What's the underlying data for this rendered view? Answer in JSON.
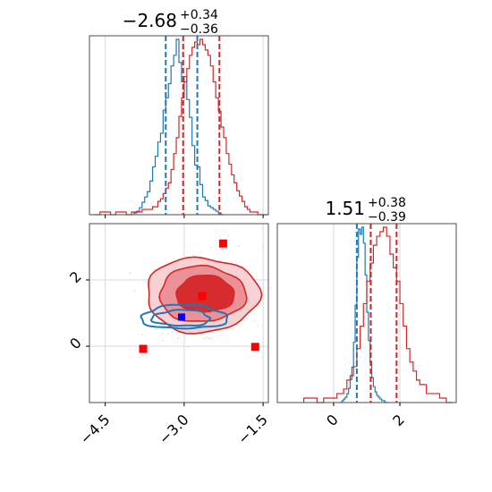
{
  "chart_data": [
    {
      "panel": "top-left",
      "type": "histogram",
      "title": {
        "value": "−2.68",
        "plus": "+0.34",
        "minus": "−0.36"
      },
      "xlim": [
        -4.8,
        -1.4
      ],
      "xticks": [
        "−4.5",
        "−3.0",
        "−1.5"
      ],
      "grid_x": [
        -4.5,
        -3.0,
        -1.5
      ],
      "series": [
        {
          "color": "#1f77b4",
          "bins": [
            -3.95,
            -3.9,
            -3.85,
            -3.8,
            -3.75,
            -3.7,
            -3.65,
            -3.6,
            -3.55,
            -3.5,
            -3.45,
            -3.4,
            -3.35,
            -3.3,
            -3.25,
            -3.2,
            -3.15,
            -3.1,
            -3.05,
            -3.0,
            -2.95,
            -2.9,
            -2.85,
            -2.8,
            -2.75,
            -2.7,
            -2.65,
            -2.6,
            -2.55,
            -2.5,
            -2.45,
            -2.4,
            -2.35,
            -2.3
          ],
          "counts": [
            0.01,
            0.02,
            0.04,
            0.07,
            0.1,
            0.13,
            0.19,
            0.27,
            0.33,
            0.41,
            0.46,
            0.59,
            0.66,
            0.74,
            0.84,
            0.9,
            0.99,
            0.86,
            0.75,
            0.78,
            0.65,
            0.55,
            0.39,
            0.28,
            0.27,
            0.17,
            0.1,
            0.08,
            0.05,
            0.04,
            0.03,
            0.02,
            0.01,
            0.0
          ]
        },
        {
          "color": "#d62728",
          "bins": [
            -4.7,
            -4.6,
            -4.5,
            -4.4,
            -4.3,
            -4.2,
            -4.1,
            -4.0,
            -3.9,
            -3.8,
            -3.7,
            -3.6,
            -3.5,
            -3.45,
            -3.4,
            -3.35,
            -3.3,
            -3.25,
            -3.2,
            -3.15,
            -3.1,
            -3.05,
            -3.0,
            -2.95,
            -2.9,
            -2.85,
            -2.8,
            -2.75,
            -2.7,
            -2.65,
            -2.6,
            -2.55,
            -2.5,
            -2.45,
            -2.4,
            -2.35,
            -2.3,
            -2.25,
            -2.2,
            -2.15,
            -2.1,
            -2.05,
            -2.0,
            -1.95,
            -1.9,
            -1.85,
            -1.8,
            -1.75,
            -1.7,
            -1.6,
            -1.5
          ],
          "counts": [
            0.0,
            0.01,
            0.01,
            0.0,
            0.01,
            0.01,
            0.0,
            0.01,
            0.01,
            0.02,
            0.02,
            0.03,
            0.05,
            0.06,
            0.08,
            0.1,
            0.12,
            0.17,
            0.23,
            0.29,
            0.37,
            0.44,
            0.5,
            0.55,
            0.6,
            0.63,
            0.65,
            0.64,
            0.66,
            0.64,
            0.62,
            0.6,
            0.56,
            0.5,
            0.44,
            0.39,
            0.33,
            0.29,
            0.23,
            0.19,
            0.15,
            0.12,
            0.09,
            0.07,
            0.05,
            0.03,
            0.02,
            0.01,
            0.01,
            0.0,
            0.0
          ]
        }
      ],
      "quantile_lines": [
        {
          "color": "#1f77b4",
          "x": [
            -3.35,
            -2.75
          ]
        },
        {
          "color": "#d62728",
          "x": [
            -3.02,
            -2.33
          ]
        }
      ]
    },
    {
      "panel": "bottom-left",
      "type": "scatter-contour",
      "xlim": [
        -4.8,
        -1.4
      ],
      "ylim": [
        -1.7,
        3.7
      ],
      "xticks": [
        "−4.5",
        "−3.0",
        "−1.5"
      ],
      "yticks": [
        "0",
        "2"
      ],
      "grid_x": [
        -4.5,
        -3.0,
        -1.5
      ],
      "grid_y": [
        0,
        2
      ],
      "contours_red": [
        {
          "cx": -2.66,
          "cy": 1.55,
          "rx": 1.07,
          "ry": 1.13
        },
        {
          "cx": -2.66,
          "cy": 1.57,
          "rx": 0.82,
          "ry": 0.84
        },
        {
          "cx": -2.6,
          "cy": 1.58,
          "rx": 0.55,
          "ry": 0.55
        }
      ],
      "contours_blue": [
        {
          "cx": -3.0,
          "cy": 0.88,
          "rx": 0.82,
          "ry": 0.36
        },
        {
          "cx": -3.05,
          "cy": 0.85,
          "rx": 0.55,
          "ry": 0.24
        }
      ],
      "markers": [
        {
          "x": -3.05,
          "y": 0.88,
          "color": "#0000ff"
        },
        {
          "x": -2.66,
          "y": 1.51,
          "color": "#ff0000"
        },
        {
          "x": -2.26,
          "y": 3.1,
          "color": "#ff0000"
        },
        {
          "x": -3.78,
          "y": -0.08,
          "color": "#ff0000"
        },
        {
          "x": -1.65,
          "y": -0.02,
          "color": "#ff0000"
        }
      ]
    },
    {
      "panel": "bottom-right",
      "type": "histogram",
      "title": {
        "value": "1.51",
        "plus": "+0.38",
        "minus": "−0.39"
      },
      "xlim": [
        -1.7,
        3.7
      ],
      "xticks": [
        "0",
        "2"
      ],
      "grid_x": [
        0,
        2
      ],
      "series": [
        {
          "color": "#1f77b4",
          "bins": [
            0.2,
            0.25,
            0.3,
            0.35,
            0.4,
            0.45,
            0.5,
            0.55,
            0.6,
            0.65,
            0.7,
            0.75,
            0.8,
            0.85,
            0.9,
            0.95,
            1.0,
            1.05,
            1.1,
            1.15,
            1.2,
            1.25,
            1.3,
            1.35,
            1.4,
            1.45,
            1.5,
            1.55,
            1.6
          ],
          "counts": [
            0.0,
            0.01,
            0.02,
            0.03,
            0.05,
            0.08,
            0.13,
            0.2,
            0.34,
            0.55,
            0.82,
            0.98,
            0.95,
            0.99,
            0.9,
            0.72,
            0.51,
            0.35,
            0.23,
            0.14,
            0.09,
            0.06,
            0.04,
            0.03,
            0.02,
            0.01,
            0.01,
            0.0,
            0.0
          ]
        },
        {
          "color": "#d62728",
          "bins": [
            -0.9,
            -0.7,
            -0.5,
            -0.3,
            -0.1,
            0.1,
            0.3,
            0.4,
            0.5,
            0.6,
            0.7,
            0.8,
            0.9,
            1.0,
            1.1,
            1.2,
            1.3,
            1.4,
            1.5,
            1.6,
            1.7,
            1.8,
            1.9,
            2.0,
            2.1,
            2.2,
            2.3,
            2.4,
            2.5,
            2.6,
            2.8,
            3.0,
            3.2,
            3.4
          ],
          "counts": [
            0.01,
            0.01,
            0.0,
            0.01,
            0.01,
            0.02,
            0.03,
            0.05,
            0.06,
            0.08,
            0.12,
            0.17,
            0.22,
            0.27,
            0.31,
            0.35,
            0.37,
            0.38,
            0.39,
            0.37,
            0.33,
            0.3,
            0.27,
            0.22,
            0.17,
            0.12,
            0.09,
            0.07,
            0.05,
            0.04,
            0.02,
            0.02,
            0.01,
            0.0
          ]
        }
      ],
      "quantile_lines": [
        {
          "color": "#1f77b4",
          "x": [
            0.7,
            1.12
          ]
        },
        {
          "color": "#d62728",
          "x": [
            1.12,
            1.9
          ]
        }
      ]
    }
  ]
}
